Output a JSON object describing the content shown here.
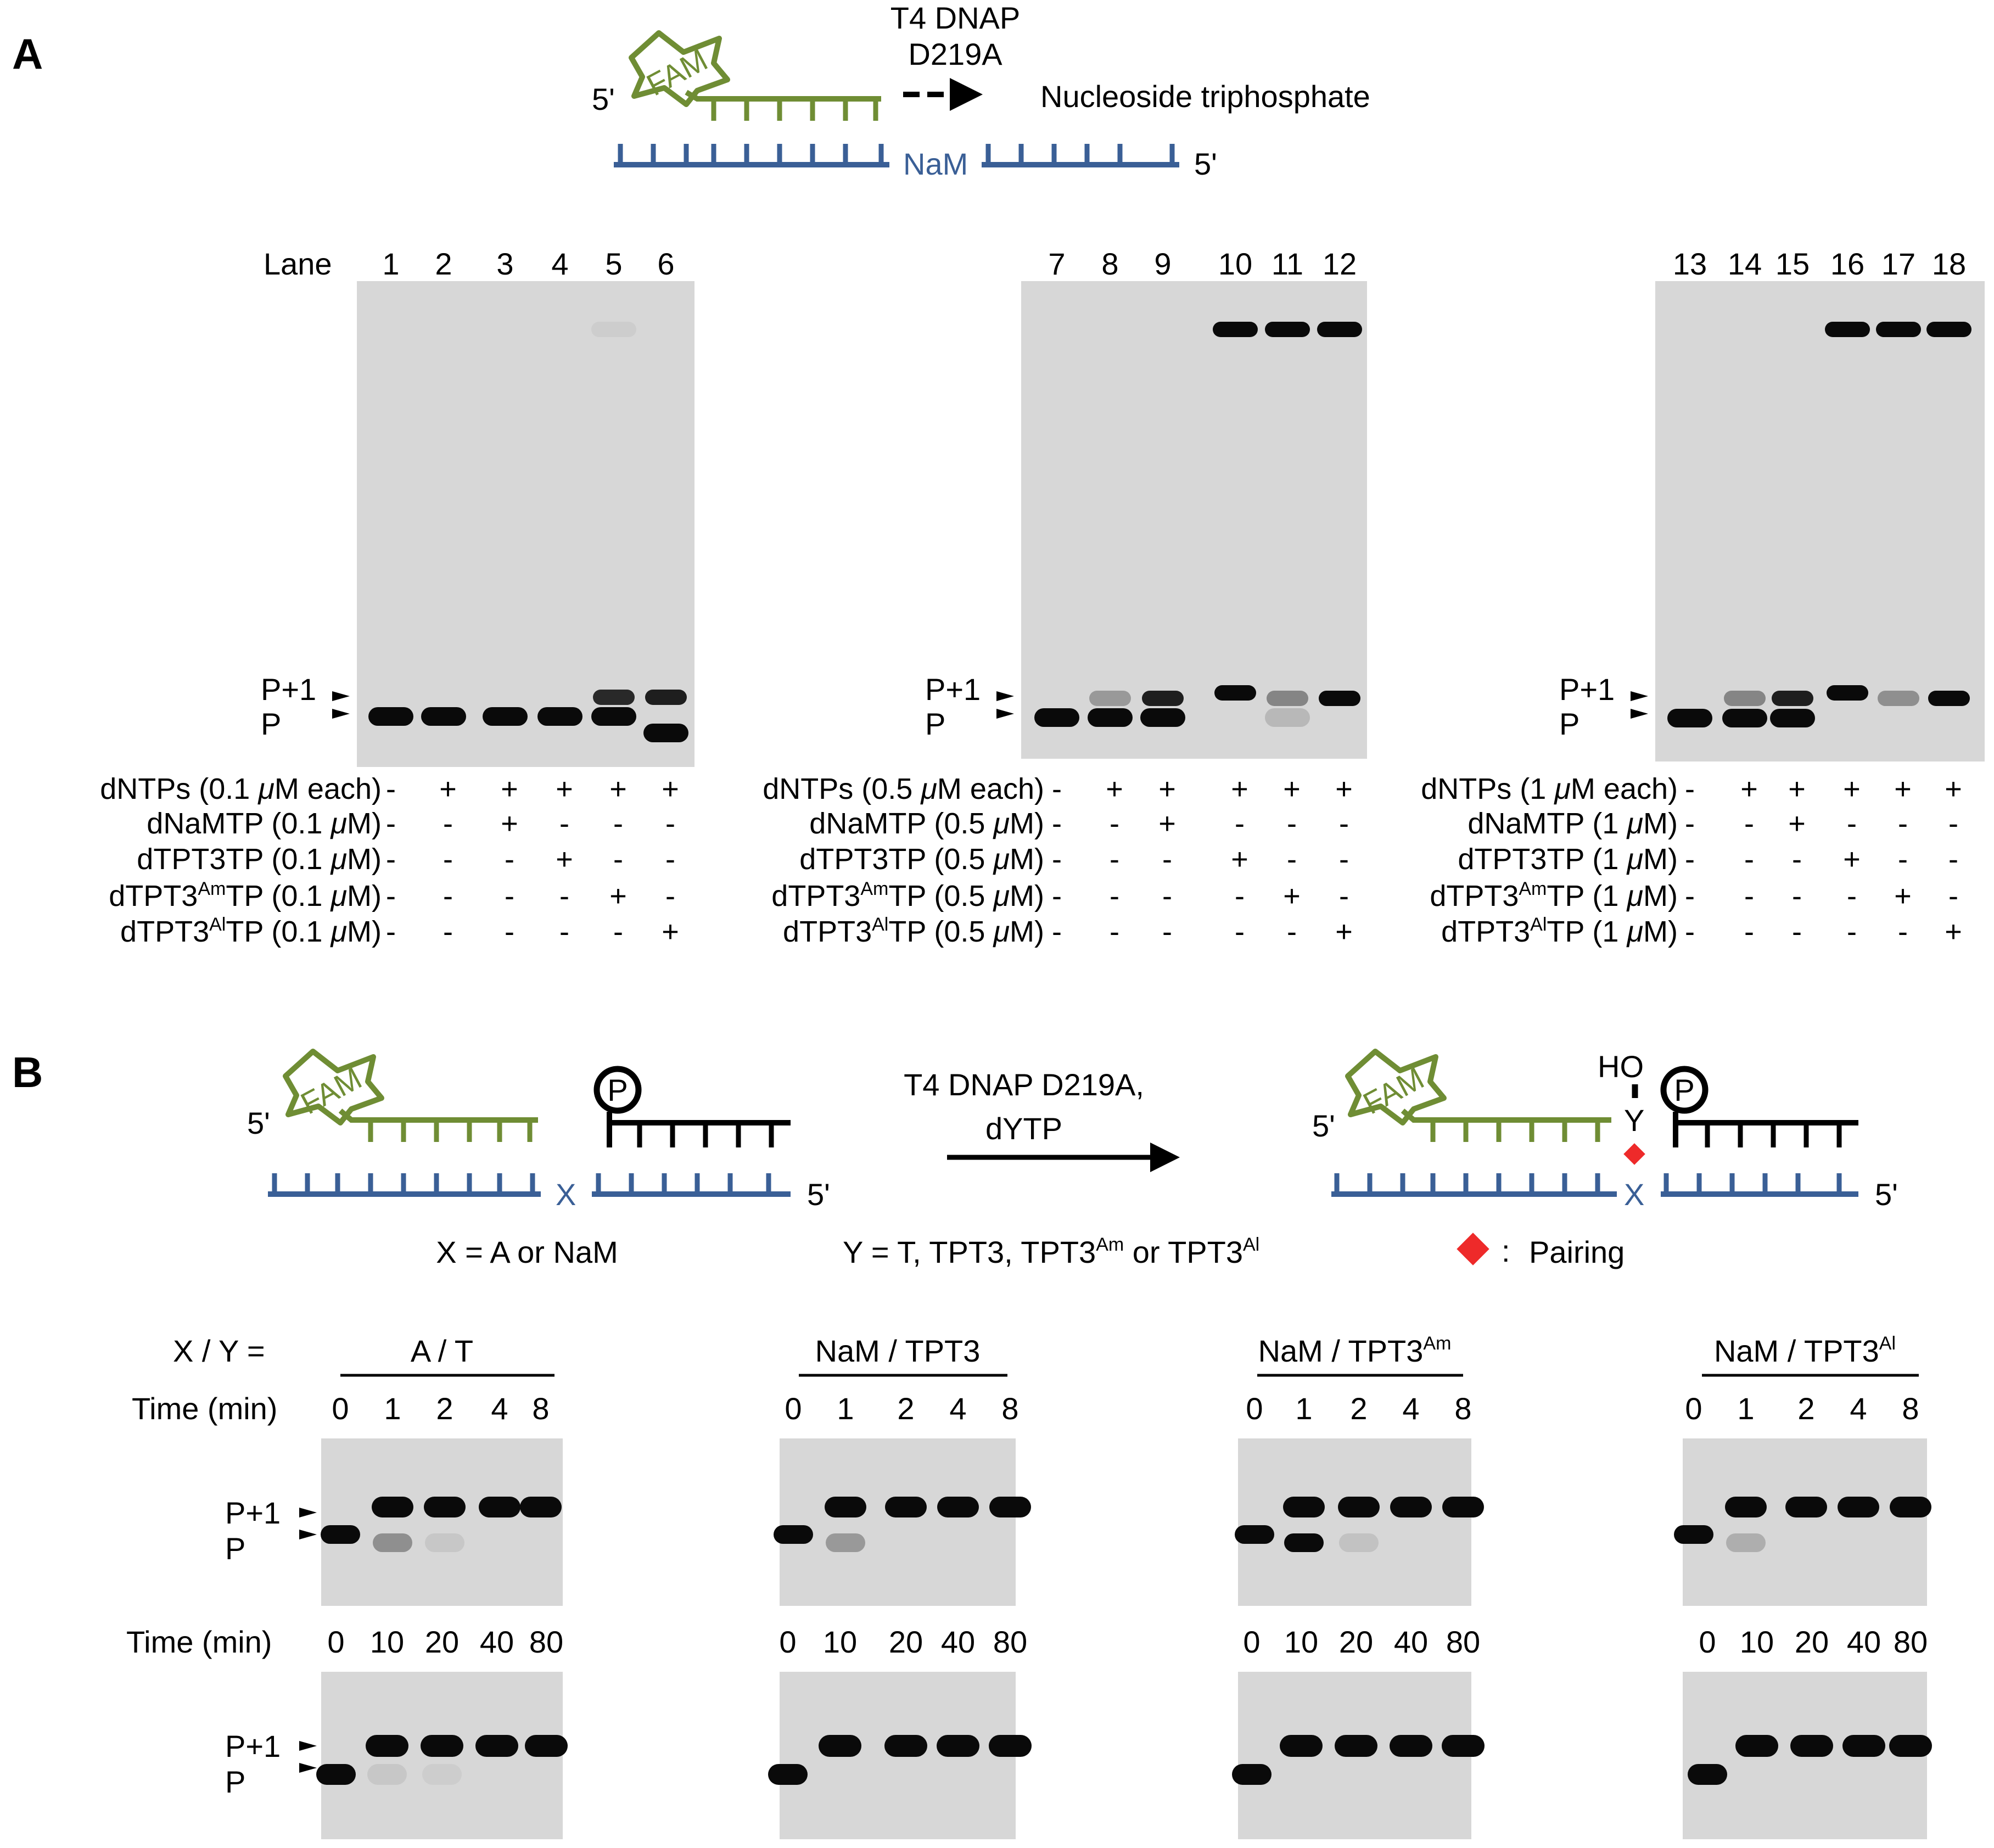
{
  "colors": {
    "primer_green": "#6f8d34",
    "template_blue": "#3a5f96",
    "pairing_red": "#ee2a2a",
    "gel_bg": "#d7d7d7",
    "band": "#0a0a0a"
  },
  "panelA": {
    "label": "A",
    "schematic": {
      "fam": "FAM",
      "five_prime_primer": "5'",
      "five_prime_template": "5'",
      "enzyme_line1": "T4 DNAP",
      "enzyme_line2": "D219A",
      "product": "Nucleoside triphosphate",
      "template_base": "NaM"
    },
    "lane_label": "Lane",
    "p1_label": "P+1",
    "p_label": "P",
    "gels": [
      {
        "lanes": [
          "1",
          "2",
          "3",
          "4",
          "5",
          "6"
        ],
        "rows": [
          {
            "pre": "dNTPs (0.1 ",
            "mu": "μ",
            "post": "M each)",
            "sign": [
              "-",
              "+",
              "+",
              "+",
              "+",
              "+"
            ]
          },
          {
            "pre": "dNaMTP (0.1 ",
            "mu": "μ",
            "post": "M)",
            "sign": [
              "-",
              "-",
              "+",
              "-",
              "-",
              "-"
            ]
          },
          {
            "pre": "dTPT3TP (0.1 ",
            "mu": "μ",
            "post": "M)",
            "sign": [
              "-",
              "-",
              "-",
              "+",
              "-",
              "-"
            ]
          },
          {
            "pre": "dTPT3",
            "sup": "Am",
            "mid": "TP (0.1 ",
            "mu": "μ",
            "post": "M)",
            "sign": [
              "-",
              "-",
              "-",
              "-",
              "+",
              "-"
            ]
          },
          {
            "pre": "dTPT3",
            "sup": "Al",
            "mid": "TP (0.1 ",
            "mu": "μ",
            "post": "M)",
            "sign": [
              "-",
              "-",
              "-",
              "-",
              "-",
              "+"
            ]
          }
        ]
      },
      {
        "lanes": [
          "7",
          "8",
          "9",
          "10",
          "11",
          "12"
        ],
        "rows": [
          {
            "pre": "dNTPs (0.5 ",
            "mu": "μ",
            "post": "M each)",
            "sign": [
              "-",
              "+",
              "+",
              "+",
              "+",
              "+"
            ]
          },
          {
            "pre": "dNaMTP (0.5 ",
            "mu": "μ",
            "post": "M)",
            "sign": [
              "-",
              "-",
              "+",
              "-",
              "-",
              "-"
            ]
          },
          {
            "pre": "dTPT3TP (0.5 ",
            "mu": "μ",
            "post": "M)",
            "sign": [
              "-",
              "-",
              "-",
              "+",
              "-",
              "-"
            ]
          },
          {
            "pre": "dTPT3",
            "sup": "Am",
            "mid": "TP (0.5 ",
            "mu": "μ",
            "post": "M)",
            "sign": [
              "-",
              "-",
              "-",
              "-",
              "+",
              "-"
            ]
          },
          {
            "pre": "dTPT3",
            "sup": "Al",
            "mid": "TP (0.5 ",
            "mu": "μ",
            "post": "M)",
            "sign": [
              "-",
              "-",
              "-",
              "-",
              "-",
              "+"
            ]
          }
        ]
      },
      {
        "lanes": [
          "13",
          "14",
          "15",
          "16",
          "17",
          "18"
        ],
        "rows": [
          {
            "pre": "dNTPs (1 ",
            "mu": "μ",
            "post": "M each)",
            "sign": [
              "-",
              "+",
              "+",
              "+",
              "+",
              "+"
            ]
          },
          {
            "pre": "dNaMTP (1 ",
            "mu": "μ",
            "post": "M)",
            "sign": [
              "-",
              "-",
              "+",
              "-",
              "-",
              "-"
            ]
          },
          {
            "pre": "dTPT3TP (1 ",
            "mu": "μ",
            "post": "M)",
            "sign": [
              "-",
              "-",
              "-",
              "+",
              "-",
              "-"
            ]
          },
          {
            "pre": "dTPT3",
            "sup": "Am",
            "mid": "TP (1 ",
            "mu": "μ",
            "post": "M)",
            "sign": [
              "-",
              "-",
              "-",
              "-",
              "+",
              "-"
            ]
          },
          {
            "pre": "dTPT3",
            "sup": "Al",
            "mid": "TP (1 ",
            "mu": "μ",
            "post": "M)",
            "sign": [
              "-",
              "-",
              "-",
              "-",
              "-",
              "+"
            ]
          }
        ]
      }
    ]
  },
  "panelB": {
    "label": "B",
    "schematic": {
      "fam": "FAM",
      "phosphate": "P",
      "five_prime": "5'",
      "x_base": "X",
      "y_base": "Y",
      "ho": "HO",
      "arrow_line1": "T4 DNAP D219A,",
      "arrow_line2": "dYTP",
      "x_def": "X = A or NaM",
      "y_def_pre": "Y = T, TPT3, TPT3",
      "y_def_sup1": "Am",
      "y_def_mid": " or TPT3",
      "y_def_sup2": "Al",
      "pairing_colon": ":",
      "pairing": "Pairing"
    },
    "xy_label": "X / Y =",
    "time_label": "Time (min)",
    "p1_label": "P+1",
    "p_label": "P",
    "times_short": [
      "0",
      "1",
      "2",
      "4",
      "8"
    ],
    "times_long": [
      "0",
      "10",
      "20",
      "40",
      "80"
    ],
    "groups": [
      {
        "pre": "A / T",
        "sup": ""
      },
      {
        "pre": "NaM / TPT3",
        "sup": ""
      },
      {
        "pre": "NaM / TPT3",
        "sup": "Am"
      },
      {
        "pre": "NaM / TPT3",
        "sup": "Al"
      }
    ]
  }
}
